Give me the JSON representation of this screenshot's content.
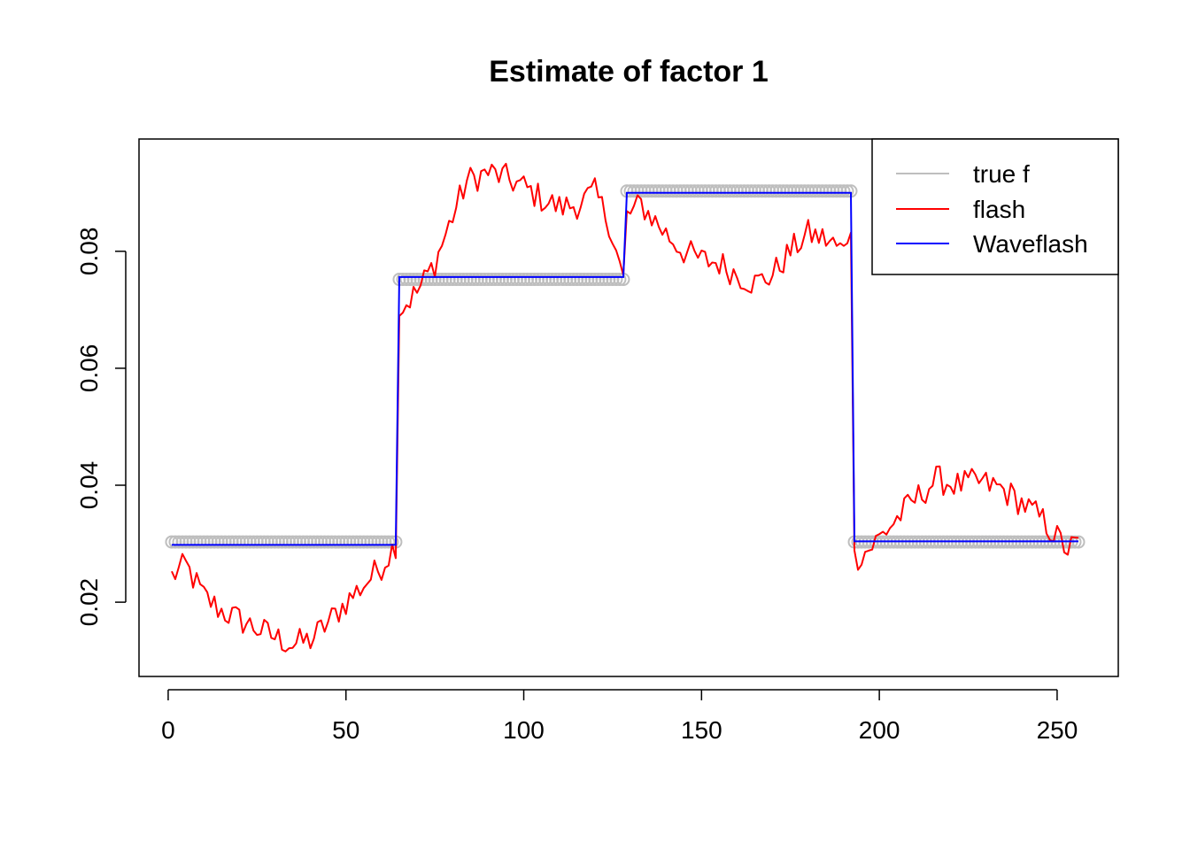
{
  "chart_data": {
    "type": "line",
    "title": "Estimate of factor 1",
    "xlabel": "",
    "ylabel": "",
    "xlim": [
      -8.2,
      267.2
    ],
    "ylim": [
      0.0073,
      0.0992
    ],
    "x_ticks": [
      0,
      50,
      100,
      150,
      200,
      250
    ],
    "x_tick_labels": [
      "0",
      "50",
      "100",
      "150",
      "200",
      "250"
    ],
    "y_ticks": [
      0.02,
      0.04,
      0.06,
      0.08
    ],
    "y_tick_labels": [
      "0.02",
      "0.04",
      "0.06",
      "0.08"
    ],
    "grid": false,
    "legend_position": "top-right",
    "series": [
      {
        "name": "true f",
        "color": "#bebebe",
        "style": "open-circles",
        "segments": [
          {
            "x_start": 1,
            "x_end": 64,
            "y": 0.0303
          },
          {
            "x_start": 65,
            "x_end": 128,
            "y": 0.0752
          },
          {
            "x_start": 129,
            "x_end": 192,
            "y": 0.0903
          },
          {
            "x_start": 193,
            "x_end": 256,
            "y": 0.0303
          }
        ]
      },
      {
        "name": "flash",
        "color": "#ff0000",
        "style": "line",
        "anchors": [
          [
            1,
            0.0245
          ],
          [
            5,
            0.0262
          ],
          [
            10,
            0.021
          ],
          [
            15,
            0.0185
          ],
          [
            20,
            0.017
          ],
          [
            25,
            0.0155
          ],
          [
            30,
            0.014
          ],
          [
            35,
            0.0128
          ],
          [
            40,
            0.0135
          ],
          [
            45,
            0.0165
          ],
          [
            50,
            0.02
          ],
          [
            55,
            0.023
          ],
          [
            60,
            0.0262
          ],
          [
            64,
            0.03
          ],
          [
            65,
            0.07
          ],
          [
            70,
            0.073
          ],
          [
            75,
            0.078
          ],
          [
            80,
            0.086
          ],
          [
            84,
            0.092
          ],
          [
            90,
            0.0935
          ],
          [
            95,
            0.0925
          ],
          [
            100,
            0.091
          ],
          [
            105,
            0.089
          ],
          [
            110,
            0.0875
          ],
          [
            115,
            0.088
          ],
          [
            120,
            0.09
          ],
          [
            124,
            0.085
          ],
          [
            128,
            0.075
          ],
          [
            129,
            0.086
          ],
          [
            133,
            0.088
          ],
          [
            140,
            0.083
          ],
          [
            145,
            0.08
          ],
          [
            150,
            0.0785
          ],
          [
            155,
            0.078
          ],
          [
            160,
            0.076
          ],
          [
            165,
            0.0745
          ],
          [
            170,
            0.076
          ],
          [
            175,
            0.08
          ],
          [
            180,
            0.083
          ],
          [
            185,
            0.082
          ],
          [
            190,
            0.08
          ],
          [
            192,
            0.085
          ],
          [
            193,
            0.0275
          ],
          [
            197,
            0.029
          ],
          [
            203,
            0.033
          ],
          [
            210,
            0.0375
          ],
          [
            216,
            0.041
          ],
          [
            222,
            0.04
          ],
          [
            228,
            0.0405
          ],
          [
            234,
            0.0395
          ],
          [
            240,
            0.037
          ],
          [
            246,
            0.034
          ],
          [
            250,
            0.031
          ],
          [
            253,
            0.029
          ],
          [
            256,
            0.03
          ]
        ],
        "noise_amplitude": 0.0025
      },
      {
        "name": "Waveflash",
        "color": "#0000ff",
        "style": "line",
        "segments": [
          {
            "x_start": 1,
            "x_end": 64,
            "y": 0.0298
          },
          {
            "x_start": 65,
            "x_end": 128,
            "y": 0.0756
          },
          {
            "x_start": 129,
            "x_end": 192,
            "y": 0.09
          },
          {
            "x_start": 193,
            "x_end": 256,
            "y": 0.0304
          }
        ]
      }
    ]
  }
}
